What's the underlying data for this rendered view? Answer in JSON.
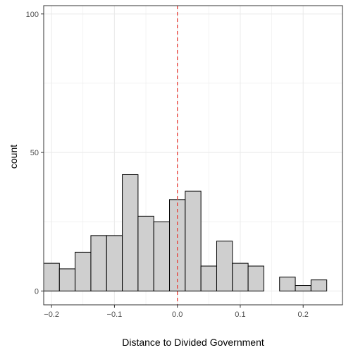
{
  "chart_data": {
    "type": "bar",
    "subtype": "histogram",
    "xlabel": "Distance to Divided Government",
    "ylabel": "count",
    "xlim": [
      -0.2125,
      0.2625
    ],
    "ylim": [
      -5,
      103
    ],
    "x_ticks": [
      {
        "value": -0.2,
        "label": "−0.2"
      },
      {
        "value": -0.1,
        "label": "−0.1"
      },
      {
        "value": 0.0,
        "label": "0.0"
      },
      {
        "value": 0.1,
        "label": "0.1"
      },
      {
        "value": 0.2,
        "label": "0.2"
      }
    ],
    "y_ticks": [
      {
        "value": 0,
        "label": "0"
      },
      {
        "value": 50,
        "label": "50"
      },
      {
        "value": 100,
        "label": "100"
      }
    ],
    "bin_width": 0.025,
    "bins": [
      {
        "x": -0.2,
        "count": 10
      },
      {
        "x": -0.175,
        "count": 8
      },
      {
        "x": -0.15,
        "count": 14
      },
      {
        "x": -0.125,
        "count": 20
      },
      {
        "x": -0.1,
        "count": 20
      },
      {
        "x": -0.075,
        "count": 42
      },
      {
        "x": -0.05,
        "count": 27
      },
      {
        "x": -0.025,
        "count": 25
      },
      {
        "x": 0.0,
        "count": 33
      },
      {
        "x": 0.025,
        "count": 36
      },
      {
        "x": 0.05,
        "count": 9
      },
      {
        "x": 0.075,
        "count": 18
      },
      {
        "x": 0.1,
        "count": 10
      },
      {
        "x": 0.125,
        "count": 9
      },
      {
        "x": 0.15,
        "count": 0
      },
      {
        "x": 0.175,
        "count": 5
      },
      {
        "x": 0.2,
        "count": 2
      },
      {
        "x": 0.225,
        "count": 4
      }
    ],
    "reference_line": {
      "x": 0.0,
      "style": "dashed",
      "color": "#e8403a"
    },
    "bar_fill": "#cfcfcf",
    "bar_stroke": "#000000",
    "grid_color": "#ebebeb",
    "grid": true,
    "legend": "none"
  }
}
